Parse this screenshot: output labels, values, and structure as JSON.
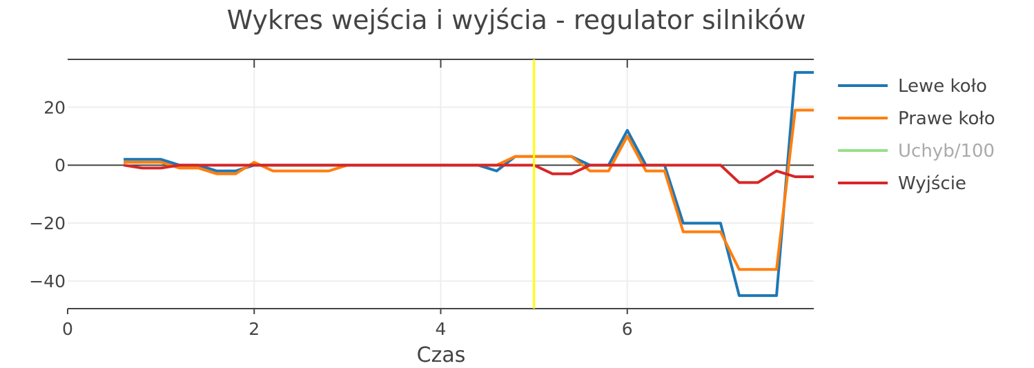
{
  "chart_data": {
    "type": "line",
    "title": "Wykres wejścia i wyjścia - regulator silników",
    "xlabel": "Czas",
    "ylabel": "",
    "xlim": [
      0,
      8
    ],
    "ylim": [
      -49.5,
      36.5
    ],
    "x_ticks": [
      {
        "value": 0,
        "label": "0"
      },
      {
        "value": 2,
        "label": "2"
      },
      {
        "value": 4,
        "label": "4"
      },
      {
        "value": 6,
        "label": "6"
      }
    ],
    "y_ticks": [
      {
        "value": 20,
        "label": "20"
      },
      {
        "value": 0,
        "label": "0"
      },
      {
        "value": -20,
        "label": "−20"
      },
      {
        "value": -40,
        "label": "−40"
      }
    ],
    "grid": true,
    "legend_position": "right",
    "vertical_marker": {
      "x": 5,
      "color": "#ffff00"
    },
    "series": [
      {
        "name": "Lewe koło",
        "color": "#1f77b4",
        "visible": true,
        "x": [
          0.6,
          1.0,
          1.2,
          1.4,
          1.6,
          1.8,
          2.0,
          2.2,
          2.4,
          2.6,
          2.8,
          3.0,
          4.4,
          4.6,
          4.8,
          5.0,
          5.2,
          5.4,
          5.6,
          5.8,
          6.0,
          6.2,
          6.4,
          6.6,
          6.8,
          7.0,
          7.2,
          7.4,
          7.6,
          7.8,
          8.0
        ],
        "y": [
          2,
          2,
          0,
          0,
          -2,
          -2,
          0,
          0,
          0,
          0,
          0,
          0,
          0,
          -2,
          3,
          3,
          3,
          3,
          0,
          0,
          12,
          0,
          0,
          -20,
          -20,
          -20,
          -45,
          -45,
          -45,
          32,
          32
        ]
      },
      {
        "name": "Prawe koło",
        "color": "#ff7f0e",
        "visible": true,
        "x": [
          0.6,
          1.0,
          1.2,
          1.4,
          1.6,
          1.8,
          2.0,
          2.2,
          2.4,
          2.6,
          2.8,
          3.0,
          4.4,
          4.6,
          4.8,
          5.0,
          5.2,
          5.4,
          5.6,
          5.8,
          6.0,
          6.2,
          6.4,
          6.6,
          6.8,
          7.0,
          7.2,
          7.4,
          7.6,
          7.8,
          8.0
        ],
        "y": [
          1,
          1,
          -1,
          -1,
          -3,
          -3,
          1,
          -2,
          -2,
          -2,
          -2,
          0,
          0,
          0,
          3,
          3,
          3,
          3,
          -2,
          -2,
          10,
          -2,
          -2,
          -23,
          -23,
          -23,
          -36,
          -36,
          -36,
          19,
          19
        ]
      },
      {
        "name": "Uchyb/100",
        "color": "#98df8a",
        "visible": false,
        "x": [],
        "y": []
      },
      {
        "name": "Wyjście",
        "color": "#d62728",
        "visible": true,
        "x": [
          0.6,
          0.8,
          1.0,
          1.2,
          5.0,
          5.2,
          5.4,
          5.6,
          7.0,
          7.2,
          7.4,
          7.6,
          7.8,
          8.0
        ],
        "y": [
          0,
          -1,
          -1,
          0,
          0,
          -3,
          -3,
          0,
          0,
          -6,
          -6,
          -2,
          -4,
          -4
        ]
      }
    ]
  }
}
